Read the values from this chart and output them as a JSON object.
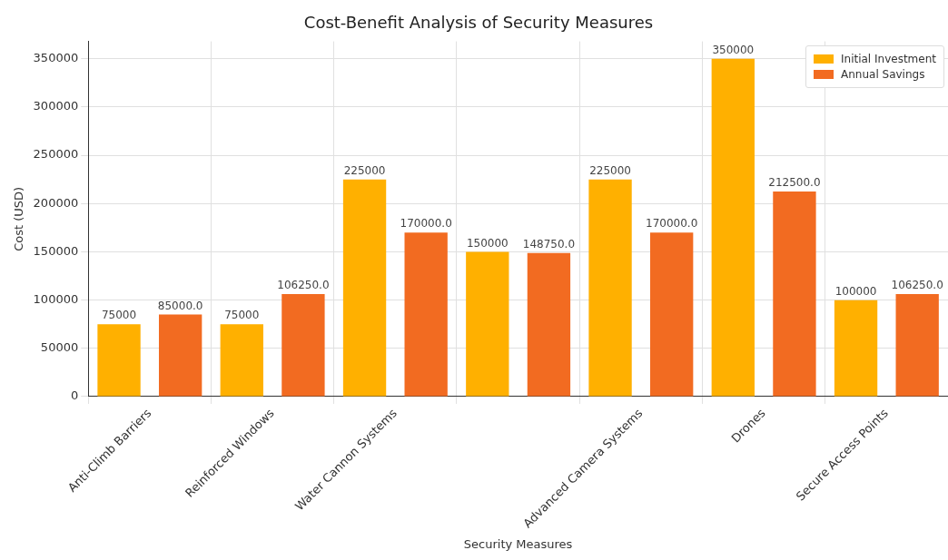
{
  "chart_data": {
    "type": "bar",
    "title": "Cost-Benefit Analysis of Security Measures",
    "xlabel": "Security Measures",
    "ylabel": "Cost (USD)",
    "categories": [
      "Anti-Climb Barriers",
      "Reinforced Windows",
      "Water Cannon Systems",
      null,
      "Advanced Camera Systems",
      "Drones",
      "Secure Access Points"
    ],
    "series": [
      {
        "name": "Initial Investment",
        "color": "#ffb000",
        "values": [
          75000,
          75000,
          225000,
          150000,
          225000,
          350000,
          100000
        ],
        "value_labels": [
          "75000",
          "75000",
          "225000",
          "150000",
          "225000",
          "350000",
          "100000"
        ]
      },
      {
        "name": "Annual Savings",
        "color": "#f26b21",
        "values": [
          85000,
          106250,
          170000,
          148750,
          170000,
          212500,
          106250
        ],
        "value_labels": [
          "85000.0",
          "106250.0",
          "170000.0",
          "148750.0",
          "170000.0",
          "212500.0",
          "106250.0"
        ]
      }
    ],
    "ylim": [
      0,
      368000
    ],
    "yticks": [
      0,
      50000,
      100000,
      150000,
      200000,
      250000,
      300000,
      350000
    ],
    "grid": true,
    "legend": "top right"
  }
}
